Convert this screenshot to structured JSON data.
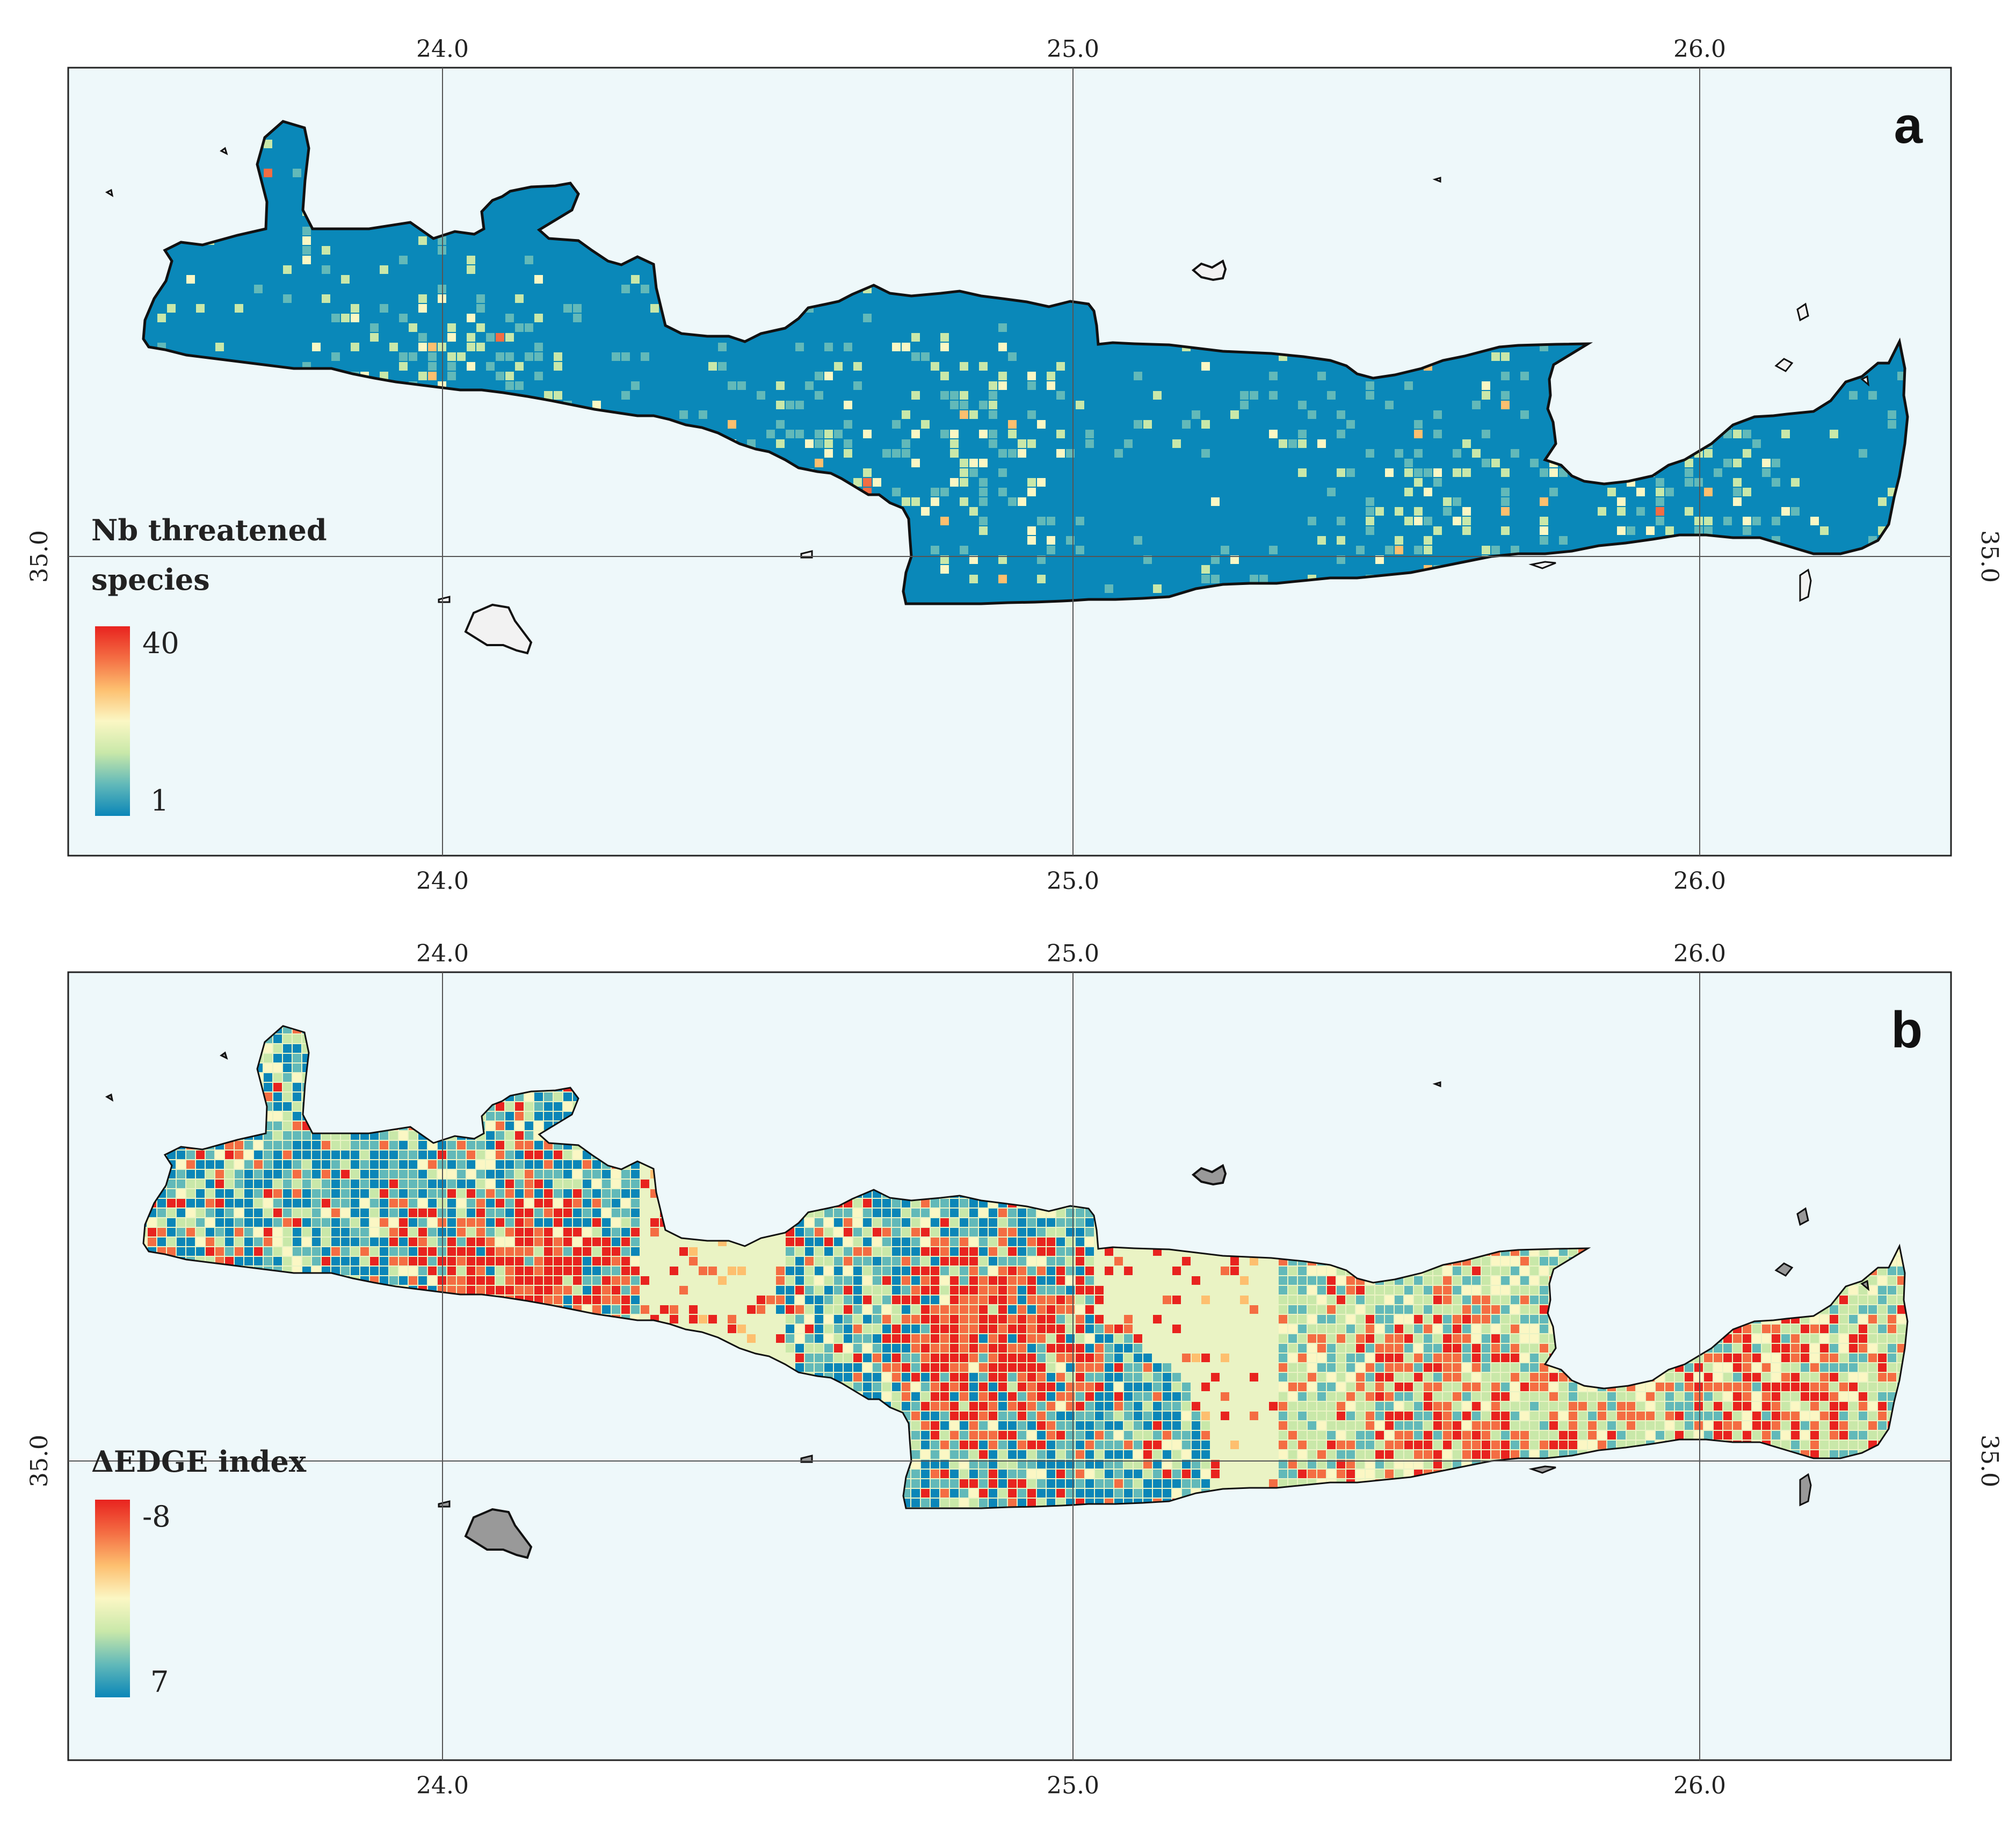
{
  "axes": {
    "lon_ticks": [
      "24.0",
      "25.0",
      "26.0"
    ],
    "lat_ticks": [
      "35.0"
    ]
  },
  "panels": [
    {
      "id": "a",
      "letter": "a",
      "legend_title_lines": [
        "Nb threatened",
        "species"
      ],
      "legend_max": "40",
      "legend_min": "1",
      "land_color": "#0a88b9",
      "colormap": [
        "#0b86b8",
        "#62b9b9",
        "#c9e8a9",
        "#fbf7c4",
        "#fdbf6f",
        "#f46d43",
        "#e8231f"
      ],
      "island_fill": "#f2f2f2",
      "hotspot_density": 0.06
    },
    {
      "id": "b",
      "letter": "b",
      "legend_title_lines": [
        "ΔEDGE index"
      ],
      "legend_max": "-8",
      "legend_min": "7",
      "land_color": "#eaf3c4",
      "colormap": [
        "#e8231f",
        "#f46d43",
        "#fdbf6f",
        "#fbf7c4",
        "#c9e8a9",
        "#62b9b9",
        "#0b86b8"
      ],
      "island_fill": "#999999",
      "hotspot_density": 0.55
    }
  ],
  "colors": {
    "sea": "#eef8fa",
    "frame": "#222222",
    "gridline": "#555555",
    "coastline": "#111111"
  }
}
